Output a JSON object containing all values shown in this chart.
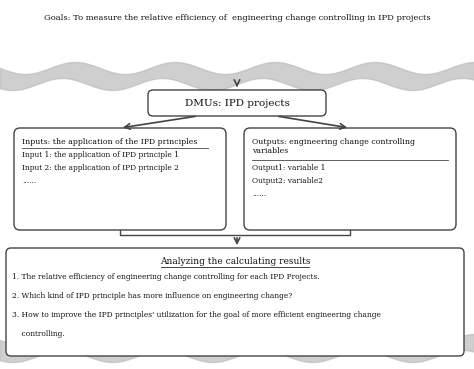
{
  "fig_bg": "#ffffff",
  "goal_text": "Goals: To measure the relative efficiency of  engineering change controlling in IPD projects",
  "dmu_text": "DMUs: IPD projects",
  "input_title": "Inputs: the application of the IPD principles",
  "input_lines": [
    "Input 1: the application of IPD principle 1",
    "Input 2: the application of IPD principle 2",
    "......"
  ],
  "output_title": "Outputs: engineering change controlling\nvariables",
  "output_lines": [
    "Output1: variable 1",
    "Output2: variable2",
    "......"
  ],
  "analyze_title": "Analyzing the calculating results",
  "analyze_lines": [
    "1. The relative efficiency of engineering change controlling for each IPD Projects.",
    "2. Which kind of IPD principle has more influence on engineering change?",
    "3. How to improve the IPD principles' utilization for the goal of more efficient engineering change",
    "    controlling."
  ],
  "edge_color": "#444444",
  "text_color": "#111111",
  "wave_color": "#bbbbbb"
}
